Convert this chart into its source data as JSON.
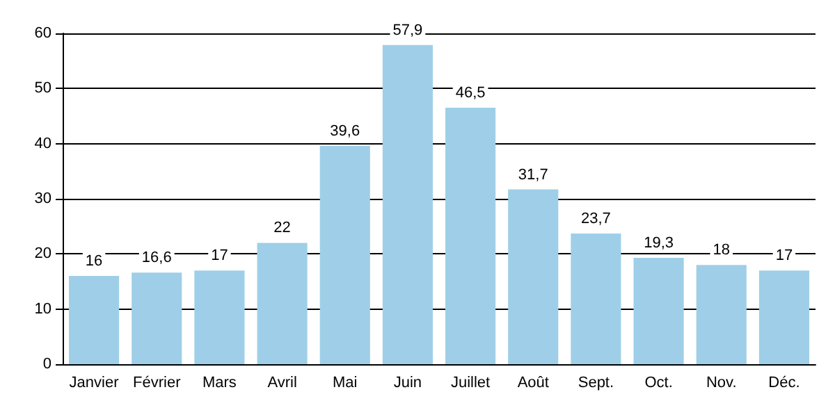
{
  "chart_data": {
    "type": "bar",
    "categories": [
      "Janvier",
      "Février",
      "Mars",
      "Avril",
      "Mai",
      "Juin",
      "Juillet",
      "Août",
      "Sept.",
      "Oct.",
      "Nov.",
      "Déc."
    ],
    "values": [
      16,
      16.6,
      17,
      22,
      39.6,
      57.9,
      46.5,
      31.7,
      23.7,
      19.3,
      18,
      17
    ],
    "value_labels": [
      "16",
      "16,6",
      "17",
      "22",
      "39,6",
      "57,9",
      "46,5",
      "31,7",
      "23,7",
      "19,3",
      "18",
      "17"
    ],
    "color": "#9fcfe8",
    "ylim": [
      0,
      60
    ],
    "yticks": [
      0,
      10,
      20,
      30,
      40,
      50,
      60
    ],
    "grid": "y"
  }
}
